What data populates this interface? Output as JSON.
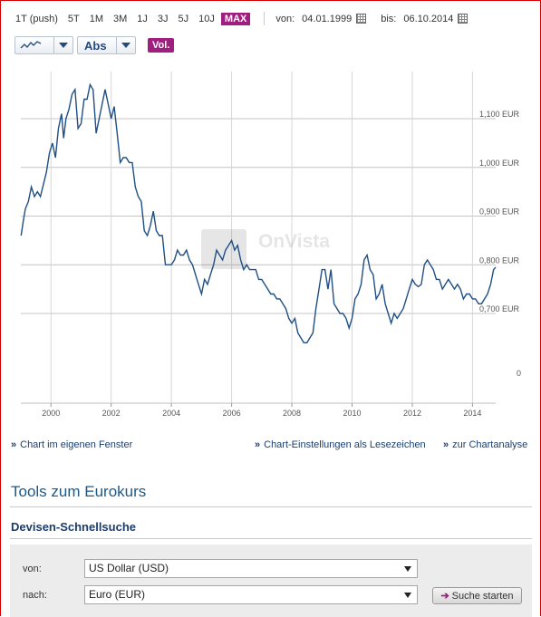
{
  "toolbar": {
    "periods": [
      {
        "label": "1T (push)",
        "active": false
      },
      {
        "label": "5T",
        "active": false
      },
      {
        "label": "1M",
        "active": false
      },
      {
        "label": "3M",
        "active": false
      },
      {
        "label": "1J",
        "active": false
      },
      {
        "label": "3J",
        "active": false
      },
      {
        "label": "5J",
        "active": false
      },
      {
        "label": "10J",
        "active": false
      },
      {
        "label": "MAX",
        "active": true
      }
    ],
    "from_label": "von:",
    "from_date": "04.01.1999",
    "to_label": "bis:",
    "to_date": "06.10.2014",
    "chart_type_icon": "line-chart-icon",
    "scale_select": "Abs",
    "vol_button": "Vol."
  },
  "watermark": "OnVista",
  "chart_data": {
    "type": "line",
    "title": "",
    "xlabel": "",
    "ylabel": "",
    "grid": true,
    "color": "#1f4f84",
    "x_ticks": [
      "2000",
      "2002",
      "2004",
      "2006",
      "2008",
      "2010",
      "2012",
      "2014"
    ],
    "y_ticks": [
      {
        "value": 0.0,
        "label": "0"
      },
      {
        "value": 0.7,
        "label": "0,700 EUR"
      },
      {
        "value": 0.8,
        "label": "0,800 EUR"
      },
      {
        "value": 0.9,
        "label": "0,900 EUR"
      },
      {
        "value": 1.0,
        "label": "1,000 EUR"
      },
      {
        "value": 1.1,
        "label": "1,100 EUR"
      }
    ],
    "xlim": [
      1999.0,
      2014.77
    ],
    "series": [
      {
        "name": "",
        "points": [
          [
            1999.01,
            0.86
          ],
          [
            1999.08,
            0.89
          ],
          [
            1999.15,
            0.915
          ],
          [
            1999.25,
            0.93
          ],
          [
            1999.35,
            0.96
          ],
          [
            1999.45,
            0.94
          ],
          [
            1999.55,
            0.95
          ],
          [
            1999.65,
            0.94
          ],
          [
            1999.75,
            0.965
          ],
          [
            1999.85,
            0.99
          ],
          [
            1999.95,
            1.03
          ],
          [
            2000.05,
            1.05
          ],
          [
            2000.15,
            1.02
          ],
          [
            2000.25,
            1.08
          ],
          [
            2000.35,
            1.11
          ],
          [
            2000.42,
            1.06
          ],
          [
            2000.5,
            1.1
          ],
          [
            2000.6,
            1.12
          ],
          [
            2000.7,
            1.15
          ],
          [
            2000.8,
            1.16
          ],
          [
            2000.9,
            1.08
          ],
          [
            2001.0,
            1.09
          ],
          [
            2001.1,
            1.14
          ],
          [
            2001.2,
            1.14
          ],
          [
            2001.3,
            1.17
          ],
          [
            2001.4,
            1.16
          ],
          [
            2001.5,
            1.07
          ],
          [
            2001.6,
            1.1
          ],
          [
            2001.7,
            1.13
          ],
          [
            2001.8,
            1.16
          ],
          [
            2001.9,
            1.13
          ],
          [
            2002.0,
            1.1
          ],
          [
            2002.1,
            1.125
          ],
          [
            2002.2,
            1.07
          ],
          [
            2002.3,
            1.01
          ],
          [
            2002.4,
            1.02
          ],
          [
            2002.5,
            1.02
          ],
          [
            2002.6,
            1.01
          ],
          [
            2002.7,
            1.01
          ],
          [
            2002.8,
            0.96
          ],
          [
            2002.9,
            0.94
          ],
          [
            2003.0,
            0.93
          ],
          [
            2003.1,
            0.87
          ],
          [
            2003.2,
            0.86
          ],
          [
            2003.3,
            0.88
          ],
          [
            2003.4,
            0.91
          ],
          [
            2003.5,
            0.87
          ],
          [
            2003.6,
            0.86
          ],
          [
            2003.7,
            0.86
          ],
          [
            2003.8,
            0.8
          ],
          [
            2003.9,
            0.8
          ],
          [
            2004.0,
            0.8
          ],
          [
            2004.1,
            0.81
          ],
          [
            2004.2,
            0.83
          ],
          [
            2004.3,
            0.82
          ],
          [
            2004.4,
            0.82
          ],
          [
            2004.5,
            0.83
          ],
          [
            2004.6,
            0.81
          ],
          [
            2004.7,
            0.8
          ],
          [
            2004.8,
            0.78
          ],
          [
            2004.9,
            0.76
          ],
          [
            2005.0,
            0.74
          ],
          [
            2005.1,
            0.77
          ],
          [
            2005.2,
            0.76
          ],
          [
            2005.3,
            0.78
          ],
          [
            2005.4,
            0.8
          ],
          [
            2005.5,
            0.83
          ],
          [
            2005.6,
            0.82
          ],
          [
            2005.7,
            0.81
          ],
          [
            2005.8,
            0.83
          ],
          [
            2005.9,
            0.84
          ],
          [
            2006.0,
            0.85
          ],
          [
            2006.1,
            0.83
          ],
          [
            2006.2,
            0.84
          ],
          [
            2006.3,
            0.81
          ],
          [
            2006.4,
            0.79
          ],
          [
            2006.5,
            0.8
          ],
          [
            2006.6,
            0.79
          ],
          [
            2006.7,
            0.79
          ],
          [
            2006.8,
            0.79
          ],
          [
            2006.9,
            0.77
          ],
          [
            2007.0,
            0.77
          ],
          [
            2007.1,
            0.76
          ],
          [
            2007.2,
            0.75
          ],
          [
            2007.3,
            0.74
          ],
          [
            2007.4,
            0.74
          ],
          [
            2007.5,
            0.73
          ],
          [
            2007.6,
            0.73
          ],
          [
            2007.7,
            0.72
          ],
          [
            2007.8,
            0.71
          ],
          [
            2007.9,
            0.69
          ],
          [
            2008.0,
            0.68
          ],
          [
            2008.1,
            0.69
          ],
          [
            2008.2,
            0.66
          ],
          [
            2008.3,
            0.65
          ],
          [
            2008.4,
            0.64
          ],
          [
            2008.5,
            0.64
          ],
          [
            2008.6,
            0.65
          ],
          [
            2008.7,
            0.66
          ],
          [
            2008.8,
            0.71
          ],
          [
            2008.9,
            0.75
          ],
          [
            2009.0,
            0.79
          ],
          [
            2009.1,
            0.79
          ],
          [
            2009.2,
            0.75
          ],
          [
            2009.3,
            0.79
          ],
          [
            2009.4,
            0.72
          ],
          [
            2009.5,
            0.71
          ],
          [
            2009.6,
            0.7
          ],
          [
            2009.7,
            0.7
          ],
          [
            2009.8,
            0.69
          ],
          [
            2009.9,
            0.67
          ],
          [
            2010.0,
            0.69
          ],
          [
            2010.1,
            0.73
          ],
          [
            2010.2,
            0.74
          ],
          [
            2010.3,
            0.76
          ],
          [
            2010.4,
            0.81
          ],
          [
            2010.5,
            0.82
          ],
          [
            2010.6,
            0.79
          ],
          [
            2010.7,
            0.78
          ],
          [
            2010.8,
            0.73
          ],
          [
            2010.9,
            0.74
          ],
          [
            2011.0,
            0.76
          ],
          [
            2011.1,
            0.72
          ],
          [
            2011.2,
            0.7
          ],
          [
            2011.3,
            0.68
          ],
          [
            2011.4,
            0.7
          ],
          [
            2011.5,
            0.69
          ],
          [
            2011.6,
            0.7
          ],
          [
            2011.7,
            0.71
          ],
          [
            2011.8,
            0.73
          ],
          [
            2011.9,
            0.75
          ],
          [
            2012.0,
            0.77
          ],
          [
            2012.1,
            0.76
          ],
          [
            2012.2,
            0.755
          ],
          [
            2012.3,
            0.76
          ],
          [
            2012.4,
            0.8
          ],
          [
            2012.5,
            0.81
          ],
          [
            2012.6,
            0.8
          ],
          [
            2012.7,
            0.79
          ],
          [
            2012.8,
            0.77
          ],
          [
            2012.9,
            0.77
          ],
          [
            2013.0,
            0.75
          ],
          [
            2013.1,
            0.76
          ],
          [
            2013.2,
            0.77
          ],
          [
            2013.3,
            0.76
          ],
          [
            2013.4,
            0.75
          ],
          [
            2013.5,
            0.76
          ],
          [
            2013.6,
            0.75
          ],
          [
            2013.7,
            0.73
          ],
          [
            2013.8,
            0.74
          ],
          [
            2013.9,
            0.74
          ],
          [
            2014.0,
            0.73
          ],
          [
            2014.1,
            0.73
          ],
          [
            2014.2,
            0.72
          ],
          [
            2014.3,
            0.72
          ],
          [
            2014.4,
            0.73
          ],
          [
            2014.5,
            0.74
          ],
          [
            2014.6,
            0.76
          ],
          [
            2014.7,
            0.79
          ],
          [
            2014.77,
            0.795
          ]
        ]
      }
    ]
  },
  "links": {
    "own_window": "Chart im eigenen Fenster",
    "bookmark": "Chart-Einstellungen als Lesezeichen",
    "analysis": "zur Chartanalyse",
    "bullet": "»"
  },
  "tools": {
    "heading": "Tools zum Eurokurs",
    "subheading": "Devisen-Schnellsuche",
    "from_label": "von:",
    "from_value": "US Dollar (USD)",
    "to_label": "nach:",
    "to_value": "Euro (EUR)",
    "search_button": "Suche starten"
  }
}
